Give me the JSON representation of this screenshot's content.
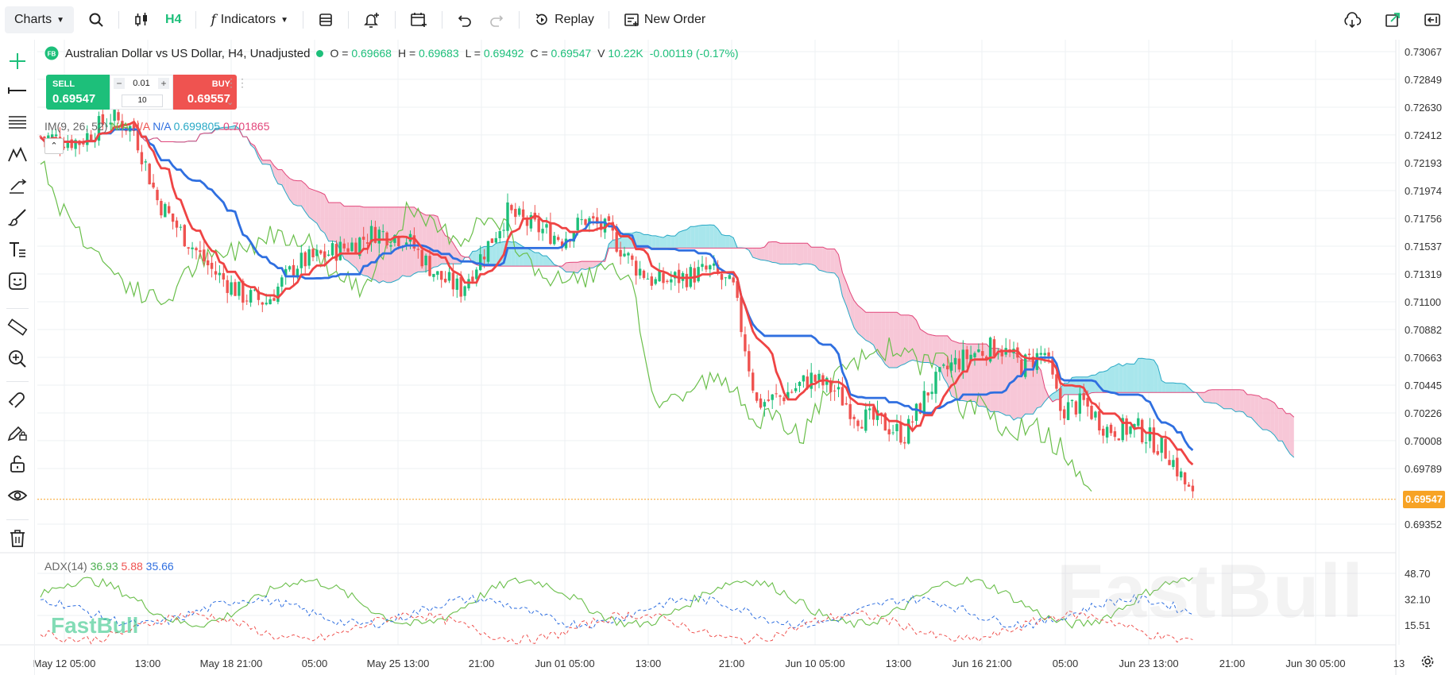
{
  "toolbar": {
    "charts_label": "Charts",
    "timeframe": "H4",
    "indicators_label": "Indicators",
    "replay_label": "Replay",
    "new_order_label": "New Order"
  },
  "symbol": {
    "badge": "FB",
    "title": "Australian Dollar vs US Dollar, H4, Unadjusted",
    "open_label": "O =",
    "open": "0.69668",
    "high_label": "H =",
    "high": "0.69683",
    "low_label": "L =",
    "low": "0.69492",
    "close_label": "C =",
    "close": "0.69547",
    "volume_label": "V",
    "volume": "10.22K",
    "change": "-0.00119 (-0.17%)"
  },
  "trade": {
    "sell_label": "SELL",
    "sell_price": "0.69547",
    "buy_label": "BUY",
    "buy_price": "0.69557",
    "lot": "0.01",
    "qty": "10"
  },
  "ichimoku_legend": {
    "name": "IM(9, 26, 52)",
    "v1": "N/A",
    "v2": "N/A",
    "v3": "N/A",
    "v4": "0.699805",
    "v5": "0.701865"
  },
  "adx_legend": {
    "name": "ADX(14)",
    "adx": "36.93",
    "minus_di": "5.88",
    "plus_di": "35.66"
  },
  "price_axis": [
    "0.73067",
    "0.72849",
    "0.72630",
    "0.72412",
    "0.72193",
    "0.71974",
    "0.71756",
    "0.71537",
    "0.71319",
    "0.71100",
    "0.70882",
    "0.70663",
    "0.70445",
    "0.70226",
    "0.70008",
    "0.69789",
    "0.69352"
  ],
  "current_price": "0.69547",
  "adx_axis": [
    "48.70",
    "32.10",
    "15.51"
  ],
  "time_axis": [
    "May 12 05:00",
    "13:00",
    "May 18 21:00",
    "05:00",
    "May 25 13:00",
    "21:00",
    "Jun 01 05:00",
    "13:00",
    "21:00",
    "Jun 10 05:00",
    "13:00",
    "Jun 16 21:00",
    "05:00",
    "Jun 23 13:00",
    "21:00",
    "Jun 30 05:00",
    "13"
  ],
  "watermark": "FastBull",
  "colors": {
    "up": "#1dbf7a",
    "down": "#ef5350",
    "tenkan": "#ef4444",
    "kijun": "#2f6fe0",
    "chikou": "#6abf4b",
    "cloud_bull": "#9fe3ea",
    "cloud_bear": "#f6c1d3",
    "adx": "#6abf4b",
    "plus_di": "#2f6fe0",
    "minus_di": "#ef5350",
    "price_tag": "#f7a325"
  }
}
